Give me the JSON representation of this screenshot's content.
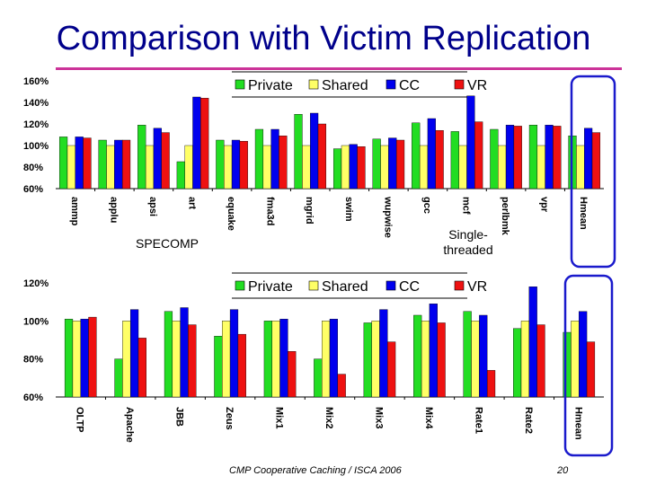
{
  "slide": {
    "title": "Comparison with Victim Replication",
    "footer": "CMP Cooperative Caching / ISCA 2006",
    "page_number": "20"
  },
  "colors": {
    "Private": "#22dd22",
    "Shared": "#ffff66",
    "CC": "#0000ee",
    "VR": "#ee1111",
    "highlight": "#1a1acc",
    "title": "#00008b",
    "title_rule": "#cc3399"
  },
  "chart_data": [
    {
      "type": "bar",
      "legend": [
        "Private",
        "Shared",
        "CC",
        "VR"
      ],
      "categories": [
        "ammp",
        "applu",
        "apsi",
        "art",
        "equake",
        "fma3d",
        "mgrid",
        "swim",
        "wupwise",
        "gcc",
        "mcf",
        "perlbmk",
        "vpr",
        "Hmean"
      ],
      "series": [
        {
          "name": "Private",
          "values": [
            108,
            105,
            119,
            85,
            105,
            115,
            129,
            97,
            106,
            121,
            113,
            115,
            119,
            109
          ]
        },
        {
          "name": "Shared",
          "values": [
            100,
            100,
            100,
            100,
            100,
            100,
            100,
            100,
            100,
            100,
            100,
            100,
            100,
            100
          ]
        },
        {
          "name": "CC",
          "values": [
            108,
            105,
            116,
            145,
            105,
            115,
            130,
            101,
            107,
            125,
            146,
            119,
            119,
            116
          ]
        },
        {
          "name": "VR",
          "values": [
            107,
            105,
            112,
            144,
            104,
            109,
            120,
            99,
            105,
            114,
            122,
            118,
            118,
            112
          ]
        }
      ],
      "yticks": [
        "60%",
        "80%",
        "100%",
        "120%",
        "140%",
        "160%"
      ],
      "ylim": [
        60,
        160
      ],
      "group_labels": [
        "SPECOMP",
        "Single-threaded"
      ],
      "highlight": "Hmean"
    },
    {
      "type": "bar",
      "legend": [
        "Private",
        "Shared",
        "CC",
        "VR"
      ],
      "categories": [
        "OLTP",
        "Apache",
        "JBB",
        "Zeus",
        "Mix1",
        "Mix2",
        "Mix3",
        "Mix4",
        "Rate1",
        "Rate2",
        "Hmean"
      ],
      "series": [
        {
          "name": "Private",
          "values": [
            101,
            80,
            105,
            92,
            100,
            80,
            99,
            103,
            105,
            96,
            94
          ]
        },
        {
          "name": "Shared",
          "values": [
            100,
            100,
            100,
            100,
            100,
            100,
            100,
            100,
            100,
            100,
            100
          ]
        },
        {
          "name": "CC",
          "values": [
            101,
            106,
            107,
            106,
            101,
            101,
            106,
            109,
            103,
            118,
            105
          ]
        },
        {
          "name": "VR",
          "values": [
            102,
            91,
            98,
            93,
            84,
            72,
            89,
            99,
            74,
            98,
            89
          ]
        }
      ],
      "yticks": [
        "60%",
        "80%",
        "100%",
        "120%"
      ],
      "ylim": [
        60,
        120
      ],
      "highlight": "Hmean"
    }
  ]
}
